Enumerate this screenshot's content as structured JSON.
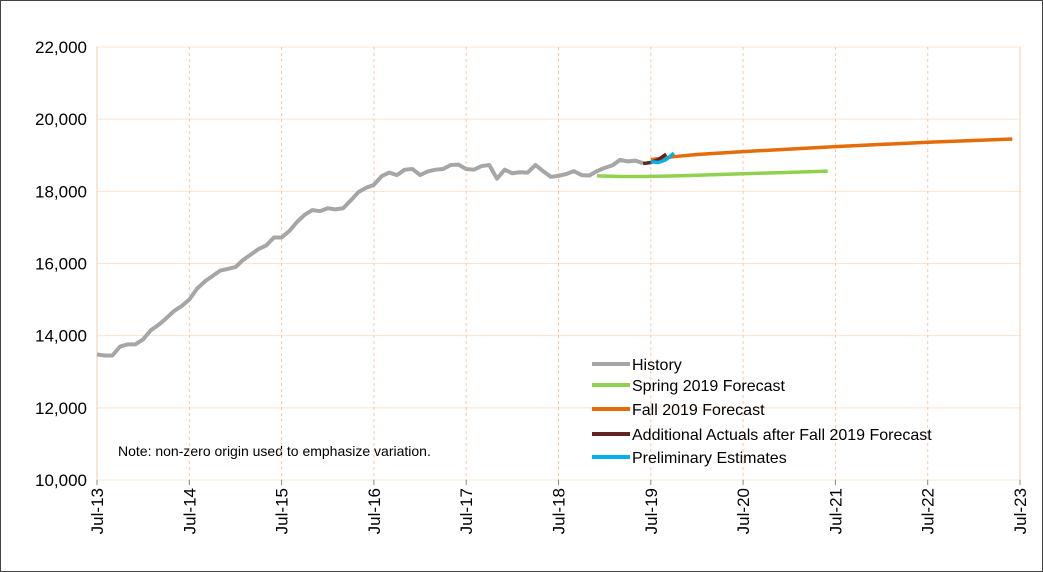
{
  "chart_data": {
    "type": "line",
    "xlim": [
      "Jul-13",
      "Jul-23"
    ],
    "xticks": [
      "Jul-13",
      "Jul-14",
      "Jul-15",
      "Jul-16",
      "Jul-17",
      "Jul-18",
      "Jul-19",
      "Jul-20",
      "Jul-21",
      "Jul-22",
      "Jul-23"
    ],
    "ylim": [
      10000,
      22000
    ],
    "yticks": [
      {
        "value": 10000,
        "label": "10,000"
      },
      {
        "value": 12000,
        "label": "12,000"
      },
      {
        "value": 14000,
        "label": "14,000"
      },
      {
        "value": 16000,
        "label": "16,000"
      },
      {
        "value": 18000,
        "label": "18,000"
      },
      {
        "value": 20000,
        "label": "20,000"
      },
      {
        "value": 22000,
        "label": "22,000"
      }
    ],
    "grid": true,
    "legend": "lower-right",
    "annotation": "Note: non-zero origin used to emphasize variation.",
    "series": [
      {
        "name": "History",
        "color": "#a6a6a6",
        "x": [
          "Jul-13",
          "Aug-13",
          "Sep-13",
          "Oct-13",
          "Nov-13",
          "Dec-13",
          "Jan-14",
          "Feb-14",
          "Mar-14",
          "Apr-14",
          "May-14",
          "Jun-14",
          "Jul-14",
          "Aug-14",
          "Sep-14",
          "Oct-14",
          "Nov-14",
          "Dec-14",
          "Jan-15",
          "Feb-15",
          "Mar-15",
          "Apr-15",
          "May-15",
          "Jun-15",
          "Jul-15",
          "Aug-15",
          "Sep-15",
          "Oct-15",
          "Nov-15",
          "Dec-15",
          "Jan-16",
          "Feb-16",
          "Mar-16",
          "Apr-16",
          "May-16",
          "Jun-16",
          "Jul-16",
          "Aug-16",
          "Sep-16",
          "Oct-16",
          "Nov-16",
          "Dec-16",
          "Jan-17",
          "Feb-17",
          "Mar-17",
          "Apr-17",
          "May-17",
          "Jun-17",
          "Jul-17",
          "Aug-17",
          "Sep-17",
          "Oct-17",
          "Nov-17",
          "Dec-17",
          "Jan-18",
          "Feb-18",
          "Mar-18",
          "Apr-18",
          "May-18",
          "Jun-18",
          "Jul-18",
          "Aug-18",
          "Sep-18",
          "Oct-18",
          "Nov-18",
          "Dec-18",
          "Jan-19",
          "Feb-19",
          "Mar-19",
          "Apr-19",
          "May-19",
          "Jun-19"
        ],
        "values": [
          13480,
          13450,
          13450,
          13700,
          13760,
          13760,
          13900,
          14150,
          14300,
          14480,
          14680,
          14820,
          15000,
          15300,
          15500,
          15650,
          15800,
          15850,
          15900,
          16100,
          16250,
          16400,
          16500,
          16720,
          16720,
          16900,
          17150,
          17350,
          17480,
          17450,
          17530,
          17500,
          17530,
          17750,
          17980,
          18100,
          18180,
          18420,
          18520,
          18450,
          18600,
          18620,
          18450,
          18550,
          18600,
          18620,
          18730,
          18740,
          18620,
          18600,
          18700,
          18730,
          18350,
          18600,
          18500,
          18530,
          18520,
          18730,
          18560,
          18400,
          18430,
          18480,
          18560,
          18450,
          18440,
          18560,
          18650,
          18720,
          18870,
          18830,
          18850,
          18780
        ]
      },
      {
        "name": "Spring 2019 Forecast",
        "color": "#92d050",
        "x": [
          "Dec-18",
          "Mar-19",
          "Jun-19",
          "Sep-19",
          "Dec-19",
          "Mar-20",
          "Jun-20",
          "Sep-20",
          "Dec-20",
          "Mar-21",
          "Jun-21"
        ],
        "values": [
          18430,
          18410,
          18410,
          18420,
          18440,
          18460,
          18480,
          18500,
          18520,
          18540,
          18560
        ]
      },
      {
        "name": "Fall 2019 Forecast",
        "color": "#e46c0a",
        "x": [
          "Jul-19",
          "Oct-19",
          "Jan-20",
          "Jul-20",
          "Jan-21",
          "Jul-21",
          "Jan-22",
          "Jul-22",
          "Jan-23",
          "Jun-23"
        ],
        "values": [
          18880,
          18960,
          19020,
          19100,
          19170,
          19240,
          19300,
          19360,
          19410,
          19450
        ]
      },
      {
        "name": "Additional Actuals after Fall 2019 Forecast",
        "color": "#632523",
        "x": [
          "Jun-19",
          "Jul-19",
          "Aug-19",
          "Sep-19"
        ],
        "values": [
          18770,
          18800,
          18880,
          19030
        ]
      },
      {
        "name": "Preliminary Estimates",
        "color": "#00b0f0",
        "x": [
          "Jul-19",
          "Aug-19",
          "Sep-19",
          "Oct-19"
        ],
        "values": [
          18820,
          18800,
          18880,
          19060
        ]
      }
    ]
  }
}
